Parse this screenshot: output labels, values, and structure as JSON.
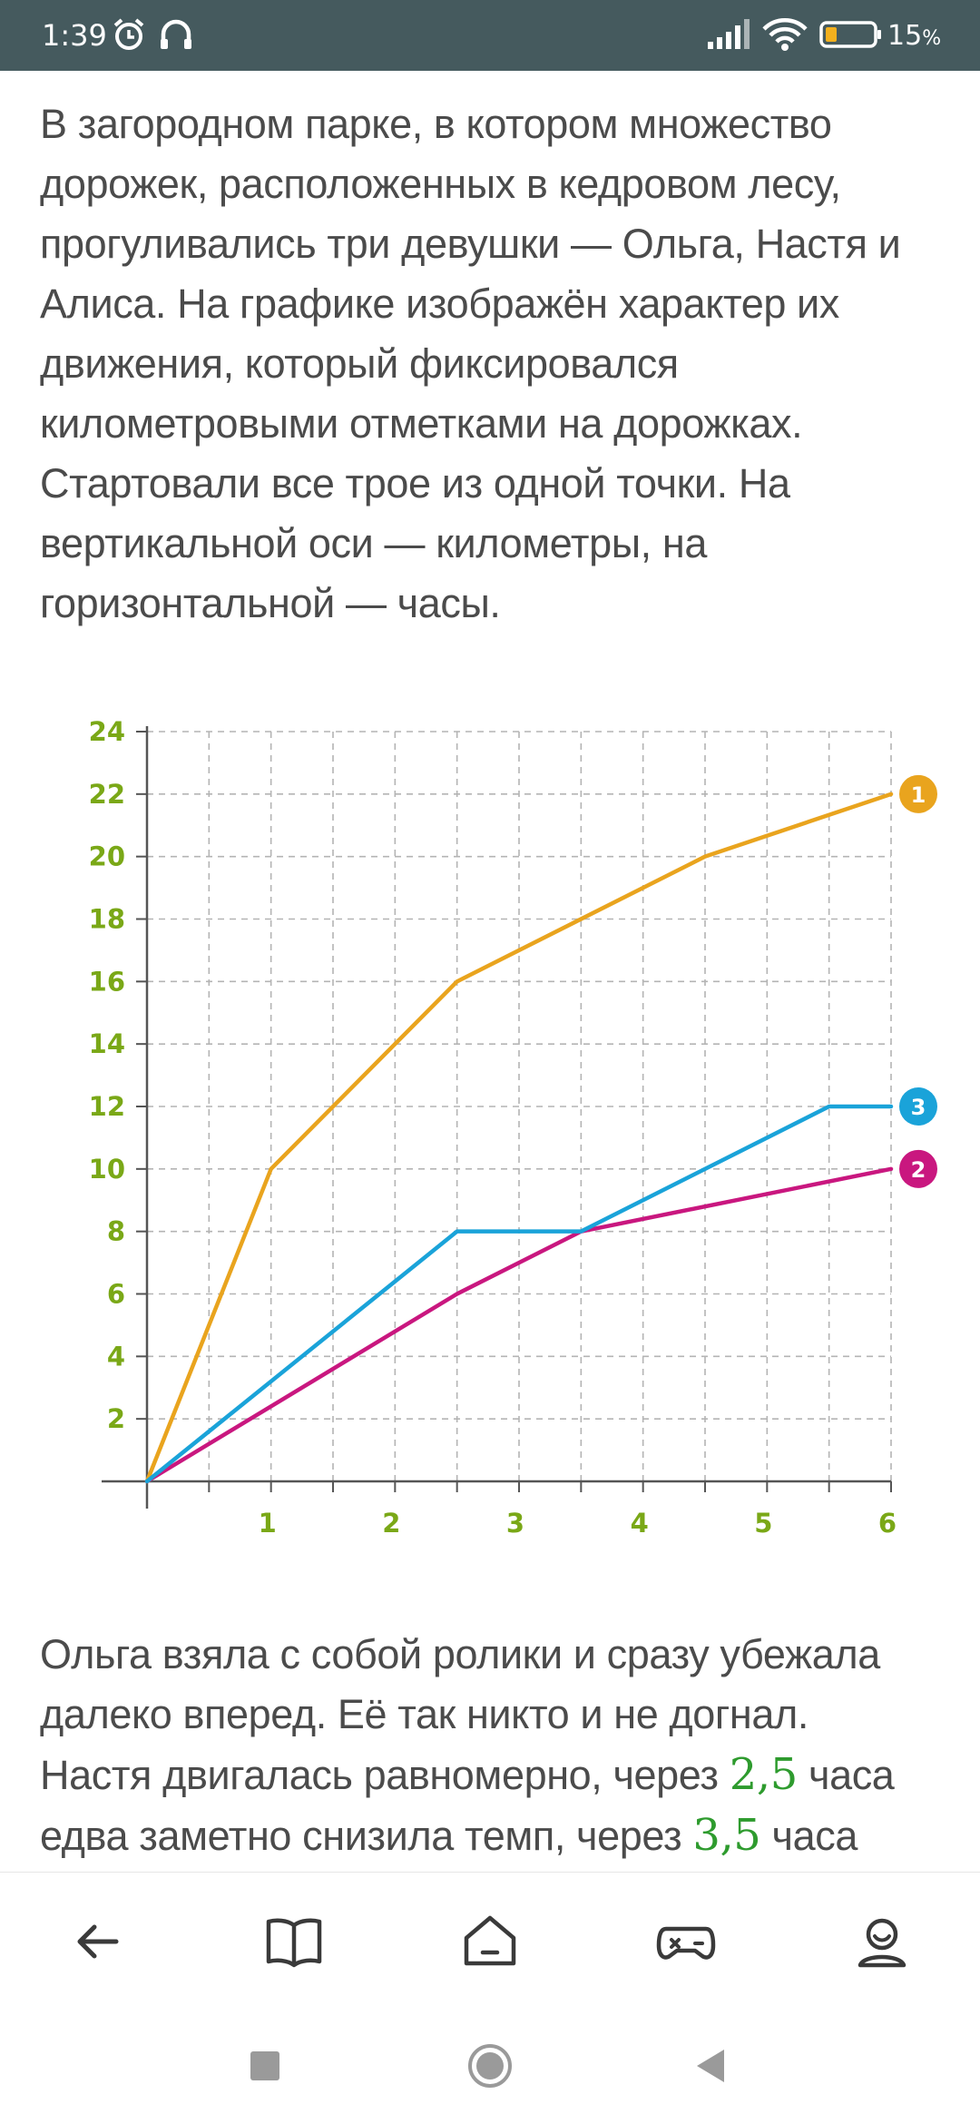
{
  "status_bar": {
    "time": "1:39",
    "battery": "15",
    "battery_unit": "%"
  },
  "article": {
    "intro_lines": [
      "В загородном парке, в котором множество",
      "дорожек, расположенных в кедровом лесу,",
      "прогуливались три девушки — Ольга, Настя и",
      "Алиса. На графике изображён характер их",
      "движения, который фиксировался",
      "километровыми отметками на дорожках.",
      "Стартовали все трое из одной точки. На",
      "вертикальной оси — километры, на",
      "горизонтальной — часы."
    ],
    "outro": {
      "line1": "Ольга взяла с собой ролики и сразу убежала",
      "line2": "далеко вперед. Её так никто и не догнал.",
      "line3_pre": "Настя двигалась равномерно, через ",
      "line3_num": "2,5",
      "line3_post": " часа",
      "line4_pre": "едва заметно снизила темп, через ",
      "line4_num": "3,5",
      "line4_post": " часа"
    }
  },
  "chart_data": {
    "type": "line",
    "title": "",
    "xlabel": "",
    "ylabel": "",
    "xlim": [
      0,
      6
    ],
    "ylim": [
      0,
      24
    ],
    "x_ticks": [
      "1",
      "2",
      "3",
      "4",
      "5",
      "6"
    ],
    "y_ticks": [
      "2",
      "4",
      "6",
      "8",
      "10",
      "12",
      "14",
      "16",
      "18",
      "20",
      "22",
      "24"
    ],
    "grid": true,
    "series": [
      {
        "name": "1",
        "color": "#e9a41e",
        "points": [
          [
            0,
            0
          ],
          [
            1,
            10
          ],
          [
            2.5,
            16
          ],
          [
            4.5,
            20
          ],
          [
            6,
            22
          ]
        ]
      },
      {
        "name": "2",
        "color": "#c9177f",
        "points": [
          [
            0,
            0
          ],
          [
            2.5,
            6
          ],
          [
            3.5,
            8
          ],
          [
            6,
            10
          ]
        ]
      },
      {
        "name": "3",
        "color": "#1aa3d9",
        "points": [
          [
            0,
            0
          ],
          [
            2.5,
            8
          ],
          [
            3.5,
            8
          ],
          [
            5.5,
            12
          ],
          [
            6,
            12
          ]
        ]
      }
    ]
  },
  "bottom_nav": {
    "items": [
      "back-arrow-icon",
      "book-icon",
      "home-icon",
      "gamepad-icon",
      "profile-icon"
    ]
  },
  "colors": {
    "status_bar": "#455a5e",
    "tick_text": "#7aa817",
    "grid": "#b4b4b4"
  }
}
